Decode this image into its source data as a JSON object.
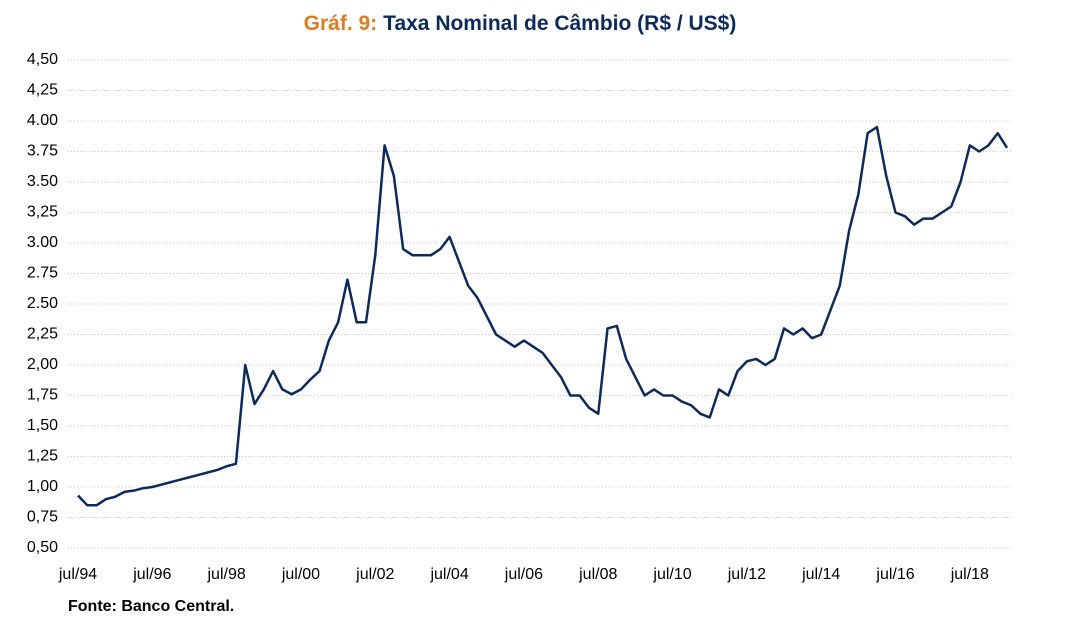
{
  "chart_data": {
    "type": "line",
    "title_label": "Gráf. 9:",
    "title": "Taxa Nominal de Câmbio (R$ / US$)",
    "source": "Fonte: Banco Central.",
    "color": "#0d2a5c",
    "grid": true,
    "categories": [
      "jul/94",
      null,
      null,
      null,
      null,
      null,
      null,
      null,
      "jul/96",
      null,
      null,
      null,
      null,
      null,
      null,
      null,
      "jul/98",
      null,
      null,
      null,
      null,
      null,
      null,
      null,
      "jul/00",
      null,
      null,
      null,
      null,
      null,
      null,
      null,
      "jul/02",
      null,
      null,
      null,
      null,
      null,
      null,
      null,
      "jul/04",
      null,
      null,
      null,
      null,
      null,
      null,
      null,
      "jul/06",
      null,
      null,
      null,
      null,
      null,
      null,
      null,
      "jul/08",
      null,
      null,
      null,
      null,
      null,
      null,
      null,
      "jul/10",
      null,
      null,
      null,
      null,
      null,
      null,
      null,
      "jul/12",
      null,
      null,
      null,
      null,
      null,
      null,
      null,
      "jul/14",
      null,
      null,
      null,
      null,
      null,
      null,
      null,
      "jul/16",
      null,
      null,
      null,
      null,
      null,
      null,
      null,
      "jul/18",
      null,
      null,
      null,
      null
    ],
    "values": [
      0.93,
      0.85,
      0.85,
      0.9,
      0.92,
      0.96,
      0.97,
      0.99,
      1.0,
      1.02,
      1.04,
      1.06,
      1.08,
      1.1,
      1.12,
      1.14,
      1.17,
      1.19,
      2.0,
      1.68,
      1.8,
      1.95,
      1.8,
      1.76,
      1.8,
      1.88,
      1.95,
      2.2,
      2.35,
      2.7,
      2.35,
      2.35,
      2.9,
      3.8,
      3.55,
      2.95,
      2.9,
      2.9,
      2.9,
      2.95,
      3.05,
      2.85,
      2.65,
      2.55,
      2.4,
      2.25,
      2.2,
      2.15,
      2.2,
      2.15,
      2.1,
      2.0,
      1.9,
      1.75,
      1.75,
      1.65,
      1.6,
      2.3,
      2.32,
      2.05,
      1.9,
      1.75,
      1.8,
      1.75,
      1.75,
      1.7,
      1.67,
      1.6,
      1.57,
      1.8,
      1.75,
      1.95,
      2.03,
      2.05,
      2.0,
      2.05,
      2.3,
      2.25,
      2.3,
      2.22,
      2.25,
      2.45,
      2.65,
      3.1,
      3.4,
      3.9,
      3.95,
      3.55,
      3.25,
      3.22,
      3.15,
      3.2,
      3.2,
      3.25,
      3.3,
      3.5,
      3.8,
      3.75,
      3.8,
      3.9,
      3.78
    ],
    "ylim": [
      0.5,
      4.5
    ],
    "yticks": [
      {
        "value": 0.5,
        "label": "0,50"
      },
      {
        "value": 0.75,
        "label": "0,75"
      },
      {
        "value": 1.0,
        "label": "1,00"
      },
      {
        "value": 1.25,
        "label": "1,25"
      },
      {
        "value": 1.5,
        "label": "1,50"
      },
      {
        "value": 1.75,
        "label": "1,75"
      },
      {
        "value": 2.0,
        "label": "2,00"
      },
      {
        "value": 2.25,
        "label": "2,25"
      },
      {
        "value": 2.5,
        "label": "2.50"
      },
      {
        "value": 2.75,
        "label": "2.75"
      },
      {
        "value": 3.0,
        "label": "3.00"
      },
      {
        "value": 3.25,
        "label": "3,25"
      },
      {
        "value": 3.5,
        "label": "3.50"
      },
      {
        "value": 3.75,
        "label": "3.75"
      },
      {
        "value": 4.0,
        "label": "4.00"
      },
      {
        "value": 4.25,
        "label": "4,25"
      },
      {
        "value": 4.5,
        "label": "4,50"
      }
    ]
  }
}
